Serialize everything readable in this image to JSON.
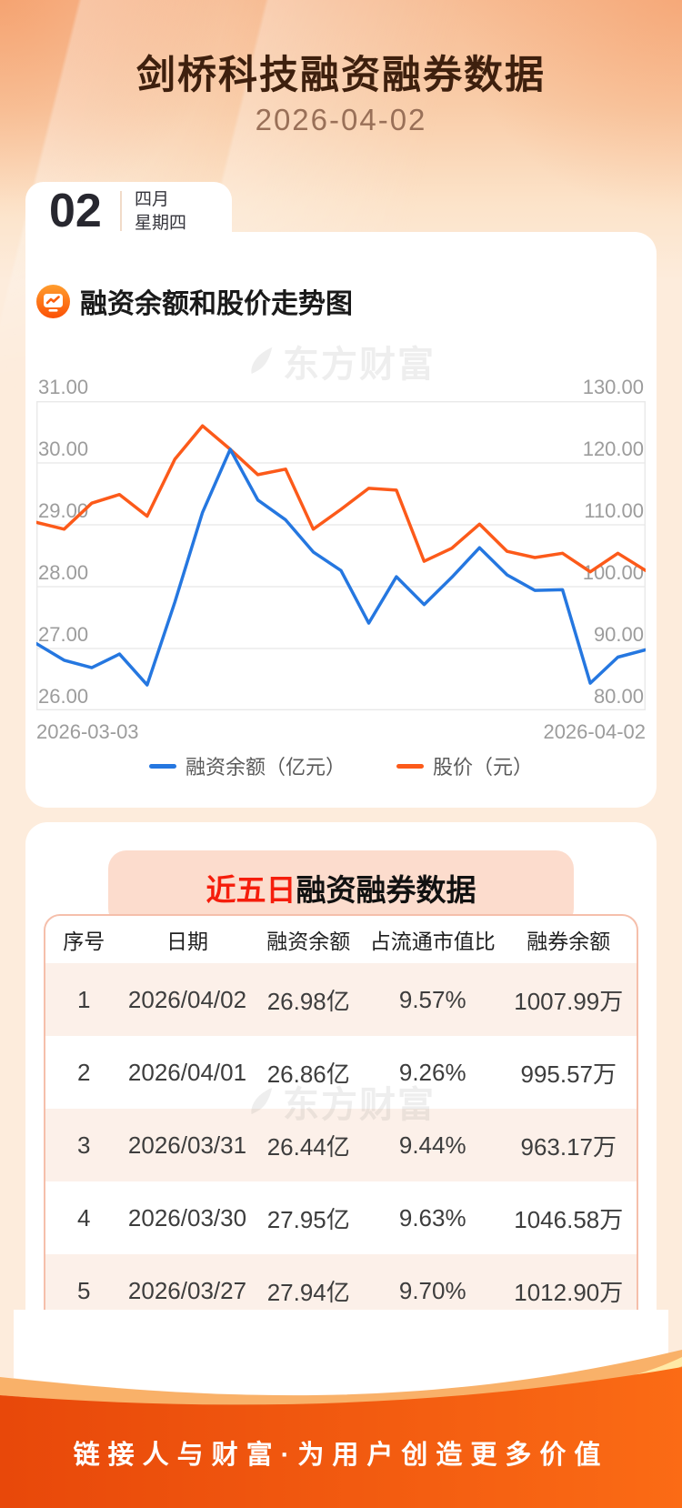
{
  "header": {
    "title": "剑桥科技融资融券数据",
    "date": "2026-04-02"
  },
  "date_card": {
    "day": "02",
    "month": "四月",
    "weekday": "星期四"
  },
  "chart_section": {
    "title": "融资余额和股价走势图"
  },
  "watermark": {
    "text": "东方财富"
  },
  "chart_data": {
    "type": "line",
    "title": "融资余额和股价走势图",
    "x_axis": {
      "start_label": "2026-03-03",
      "end_label": "2026-04-02",
      "points": 23
    },
    "y_left": {
      "min": 26,
      "max": 31,
      "ticks": [
        "31.00",
        "30.00",
        "29.00",
        "28.00",
        "27.00",
        "26.00"
      ]
    },
    "y_right": {
      "min": 80,
      "max": 130,
      "ticks": [
        "130.00",
        "120.00",
        "110.00",
        "100.00",
        "90.00",
        "80.00"
      ]
    },
    "grid": true,
    "legend_position": "bottom",
    "series": [
      {
        "name": "融资余额（亿元）",
        "axis": "left",
        "color": "#2577e0",
        "values": [
          27.08,
          26.81,
          26.69,
          26.91,
          26.41,
          27.75,
          29.2,
          30.22,
          29.4,
          29.08,
          28.56,
          28.26,
          27.41,
          28.16,
          27.71,
          28.15,
          28.63,
          28.19,
          27.94,
          27.95,
          26.44,
          26.86,
          26.98
        ]
      },
      {
        "name": "股价（元）",
        "axis": "right",
        "color": "#fc5a1a",
        "values": [
          110.4,
          109.3,
          113.5,
          114.9,
          111.4,
          120.6,
          126.0,
          122.2,
          118.1,
          119.0,
          109.3,
          112.5,
          115.9,
          115.6,
          104.1,
          106.2,
          110.1,
          105.7,
          104.7,
          105.4,
          102.4,
          105.4,
          102.6
        ]
      }
    ],
    "legend": [
      {
        "label": "融资余额（亿元）",
        "color": "#2577e0"
      },
      {
        "label": "股价（元）",
        "color": "#fc5a1a"
      }
    ]
  },
  "table": {
    "banner_highlight": "近五日",
    "banner_rest": "融资融券数据",
    "headers": [
      "序号",
      "日期",
      "融资余额",
      "占流通市值比",
      "融券余额"
    ],
    "rows": [
      [
        "1",
        "2026/04/02",
        "26.98亿",
        "9.57%",
        "1007.99万"
      ],
      [
        "2",
        "2026/04/01",
        "26.86亿",
        "9.26%",
        "995.57万"
      ],
      [
        "3",
        "2026/03/31",
        "26.44亿",
        "9.44%",
        "963.17万"
      ],
      [
        "4",
        "2026/03/30",
        "27.95亿",
        "9.63%",
        "1046.58万"
      ],
      [
        "5",
        "2026/03/27",
        "27.94亿",
        "9.70%",
        "1012.90万"
      ]
    ]
  },
  "footer": {
    "slogan": "链接人与财富·为用户创造更多价值"
  }
}
